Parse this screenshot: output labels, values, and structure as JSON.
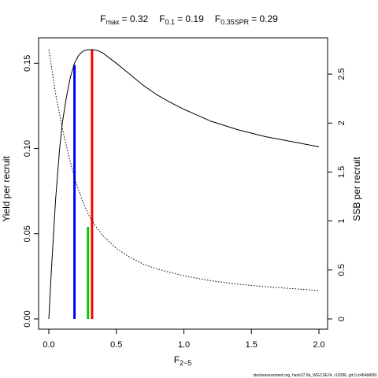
{
  "title": {
    "fmax": {
      "main": "F",
      "sub": "max",
      "value": "= 0.32"
    },
    "f01": {
      "main": "F",
      "sub": "0.1",
      "value": "= 0.19"
    },
    "fspr": {
      "main": "F",
      "sub": "0.35SPR",
      "value": "= 0.29"
    }
  },
  "footer": "stockassessment.org, hash27.6b_WGCSE24, r19286, git:1cc464b806f",
  "chart_data": {
    "type": "line",
    "x_label": {
      "main": "F",
      "bar": "‾",
      "sub": "2−5"
    },
    "ylabel_left": "Yield per recruit",
    "ylabel_right": "SSB per recruit",
    "xlim": [
      0,
      2
    ],
    "ylim_left": [
      0,
      0.158
    ],
    "ylim_right": [
      0,
      2.75
    ],
    "x_ticks": [
      "0.0",
      "0.5",
      "1.0",
      "1.5",
      "2.0"
    ],
    "x_tick_values": [
      0,
      0.5,
      1,
      1.5,
      2
    ],
    "y_left_ticks": [
      "0.00",
      "0.05",
      "0.10",
      "0.15"
    ],
    "y_left_tick_values": [
      0,
      0.05,
      0.1,
      0.15
    ],
    "y_right_ticks": [
      "0",
      "0.5",
      "1",
      "1.5",
      "2",
      "2.5"
    ],
    "y_right_tick_values": [
      0,
      0.5,
      1,
      1.5,
      2,
      2.5
    ],
    "series": [
      {
        "axis": "left",
        "style": "solid",
        "color": "#000000",
        "x": [
          0,
          0.02,
          0.05,
          0.08,
          0.1,
          0.13,
          0.16,
          0.19,
          0.22,
          0.25,
          0.28,
          0.32,
          0.36,
          0.4,
          0.5,
          0.6,
          0.7,
          0.8,
          0.9,
          1.0,
          1.2,
          1.4,
          1.6,
          1.8,
          2.0
        ],
        "y": [
          0,
          0.03,
          0.07,
          0.1,
          0.115,
          0.13,
          0.142,
          0.15,
          0.1545,
          0.157,
          0.1578,
          0.158,
          0.1575,
          0.156,
          0.15,
          0.1435,
          0.137,
          0.1315,
          0.127,
          0.123,
          0.116,
          0.111,
          0.107,
          0.104,
          0.101
        ]
      },
      {
        "axis": "right",
        "style": "dotted",
        "color": "#000000",
        "x": [
          0,
          0.05,
          0.1,
          0.15,
          0.2,
          0.25,
          0.3,
          0.35,
          0.4,
          0.5,
          0.6,
          0.7,
          0.8,
          1.0,
          1.2,
          1.4,
          1.6,
          1.8,
          2.0
        ],
        "y": [
          2.75,
          2.3,
          1.95,
          1.65,
          1.4,
          1.2,
          1.05,
          0.94,
          0.85,
          0.72,
          0.63,
          0.56,
          0.51,
          0.44,
          0.39,
          0.355,
          0.33,
          0.31,
          0.29
        ]
      }
    ],
    "reference_lines": [
      {
        "name": "F0.1",
        "x": 0.19,
        "y_top": 0.149,
        "color": "#0000ff"
      },
      {
        "name": "Fmax",
        "x": 0.32,
        "y_top": 0.158,
        "color": "#ff0000"
      },
      {
        "name": "F0.35SPR",
        "x": 0.29,
        "y_top": 0.054,
        "color": "#00cc00"
      }
    ]
  }
}
